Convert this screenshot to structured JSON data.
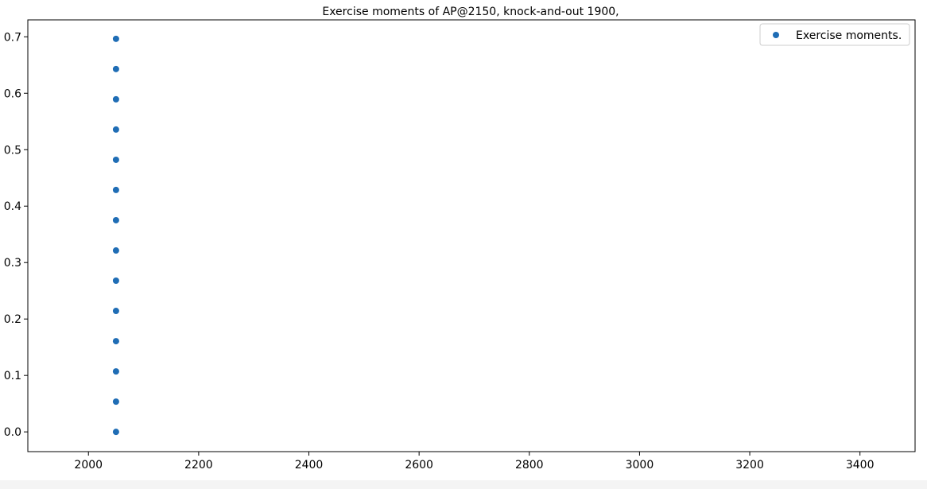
{
  "chart_data": {
    "type": "scatter",
    "title": "Exercise moments of AP@2150, knock-and-out 1900,",
    "xlabel": "",
    "ylabel": "",
    "xlim": [
      1890,
      3500
    ],
    "ylim": [
      -0.035,
      0.73
    ],
    "x_ticks": [
      2000,
      2200,
      2400,
      2600,
      2800,
      3000,
      3200,
      3400
    ],
    "y_ticks": [
      0.0,
      0.1,
      0.2,
      0.3,
      0.4,
      0.5,
      0.6,
      0.7
    ],
    "x_tick_labels": [
      "2000",
      "2200",
      "2400",
      "2600",
      "2800",
      "3000",
      "3200",
      "3400"
    ],
    "y_tick_labels": [
      "0.0",
      "0.1",
      "0.2",
      "0.3",
      "0.4",
      "0.5",
      "0.6",
      "0.7"
    ],
    "grid": false,
    "legend_position": "top-right",
    "series": [
      {
        "name": "Exercise moments.",
        "color": "#1f6db5",
        "points": [
          {
            "x": 2050,
            "y": 0.0
          },
          {
            "x": 2050,
            "y": 0.0536
          },
          {
            "x": 2050,
            "y": 0.1071
          },
          {
            "x": 2050,
            "y": 0.1607
          },
          {
            "x": 2050,
            "y": 0.2143
          },
          {
            "x": 2050,
            "y": 0.2679
          },
          {
            "x": 2050,
            "y": 0.3214
          },
          {
            "x": 2050,
            "y": 0.375
          },
          {
            "x": 2050,
            "y": 0.4286
          },
          {
            "x": 2050,
            "y": 0.4821
          },
          {
            "x": 2050,
            "y": 0.5357
          },
          {
            "x": 2050,
            "y": 0.5893
          },
          {
            "x": 2050,
            "y": 0.6429
          },
          {
            "x": 2050,
            "y": 0.6964
          }
        ]
      }
    ]
  }
}
